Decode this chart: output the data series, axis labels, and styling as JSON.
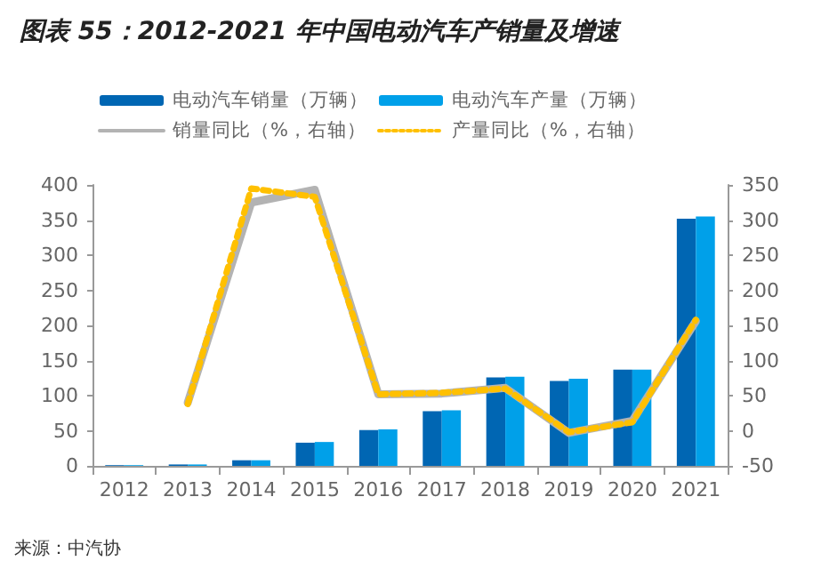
{
  "chart_data": {
    "type": "bar",
    "title": "图表 55：2012-2021 年中国电动汽车产销量及增速",
    "categories": [
      "2012",
      "2013",
      "2014",
      "2015",
      "2016",
      "2017",
      "2018",
      "2019",
      "2020",
      "2021"
    ],
    "series": [
      {
        "name": "电动汽车销量（万辆）",
        "color": "#0066b3",
        "values": [
          1,
          2,
          8,
          33,
          51,
          78,
          126,
          121,
          137,
          352
        ]
      },
      {
        "name": "电动汽车产量（万辆）",
        "color": "#00a0e9",
        "values": [
          1,
          2,
          8,
          34,
          52,
          79,
          127,
          124,
          137,
          355
        ]
      },
      {
        "name": "销量同比（%，右轴）",
        "type": "line",
        "axis": "y2",
        "color": "#b3b3b3",
        "line_style": "solid",
        "values": [
          null,
          40,
          325,
          343,
          52,
          53,
          61,
          -3,
          14,
          156
        ]
      },
      {
        "name": "产量同比（%，右轴）",
        "type": "line",
        "axis": "y2",
        "color": "#ffc000",
        "line_style": "dotted",
        "values": [
          null,
          38,
          345,
          333,
          52,
          54,
          60,
          -2,
          12,
          158
        ]
      }
    ],
    "ylim": [
      0,
      400
    ],
    "yticks": [
      0,
      50,
      100,
      150,
      200,
      250,
      300,
      350,
      400
    ],
    "y2lim": [
      -50,
      350
    ],
    "y2ticks": [
      -50,
      0,
      50,
      100,
      150,
      200,
      250,
      300,
      350
    ],
    "grid": false,
    "legend": "top",
    "marker": "none",
    "annotations": [
      "来源：中汽协"
    ]
  }
}
